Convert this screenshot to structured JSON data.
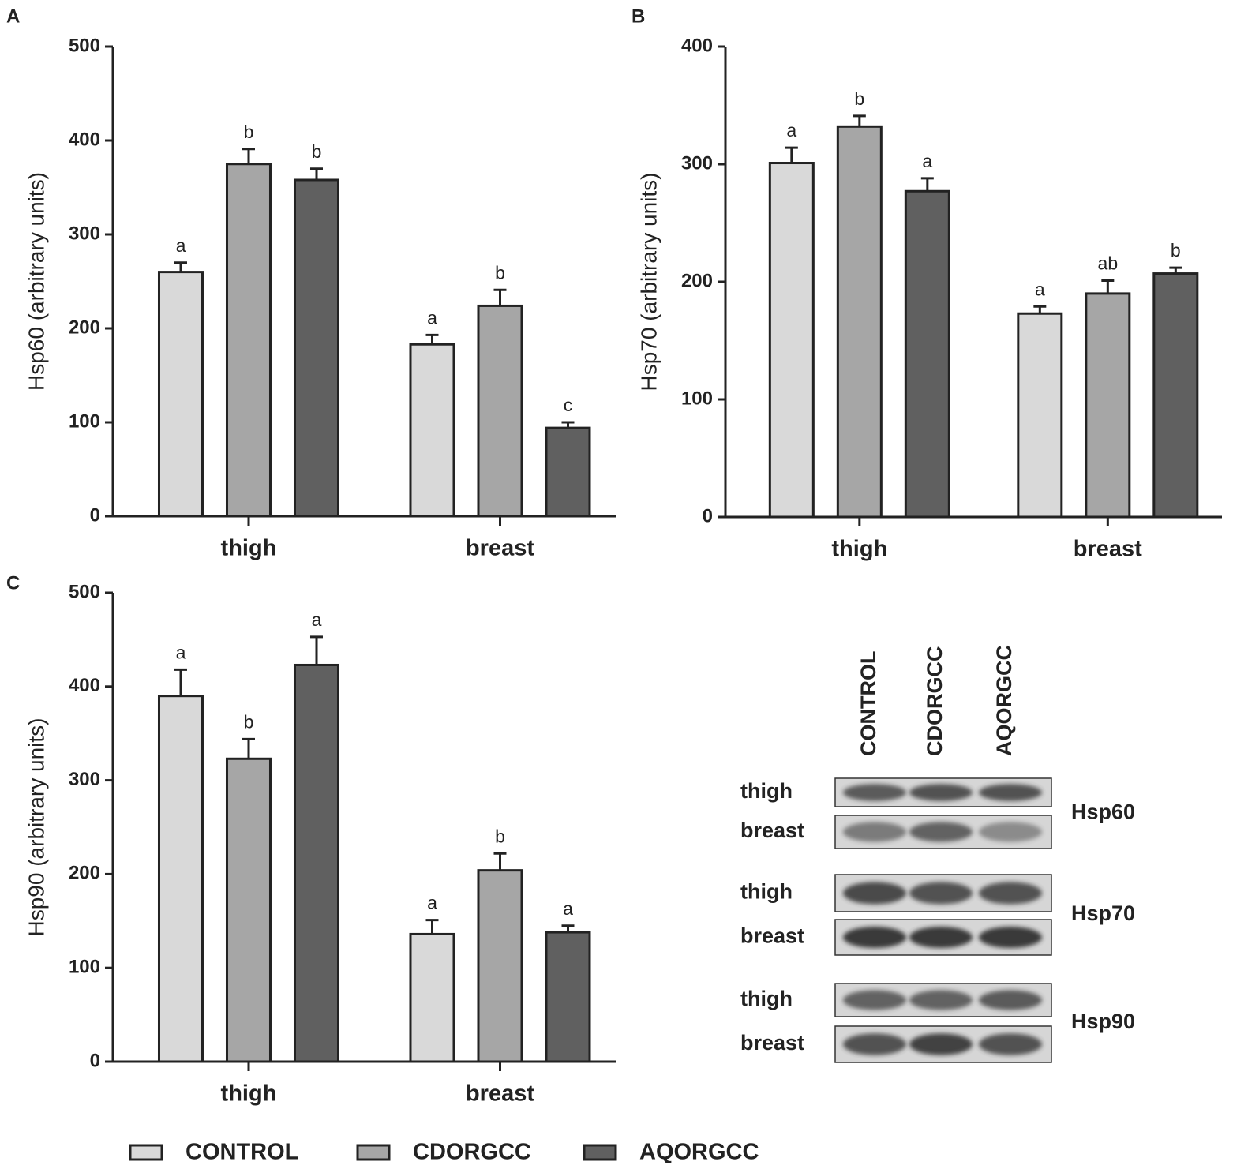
{
  "chart_data": [
    {
      "type": "bar",
      "panel": "A",
      "ylabel": "Hsp60 (arbitrary units)",
      "categories": [
        "thigh",
        "breast"
      ],
      "series": [
        {
          "color": "#d9d9d9",
          "values": [
            260,
            183
          ],
          "errors": [
            10,
            10
          ],
          "annotations": [
            "a",
            "a"
          ]
        },
        {
          "color": "#a6a6a6",
          "values": [
            375,
            224
          ],
          "errors": [
            16,
            17
          ],
          "annotations": [
            "b",
            "b"
          ]
        },
        {
          "color": "#606060",
          "values": [
            358,
            94
          ],
          "errors": [
            12,
            6
          ],
          "annotations": [
            "b",
            "c"
          ]
        }
      ],
      "ylim": [
        0,
        500
      ],
      "yticks": [
        0,
        100,
        200,
        300,
        400,
        500
      ]
    },
    {
      "type": "bar",
      "panel": "B",
      "ylabel": "Hsp70 (arbitrary units)",
      "categories": [
        "thigh",
        "breast"
      ],
      "series": [
        {
          "color": "#d9d9d9",
          "values": [
            301,
            173
          ],
          "errors": [
            13,
            6
          ],
          "annotations": [
            "a",
            "a"
          ]
        },
        {
          "color": "#a6a6a6",
          "values": [
            332,
            190
          ],
          "errors": [
            9,
            11
          ],
          "annotations": [
            "b",
            "ab"
          ]
        },
        {
          "color": "#606060",
          "values": [
            277,
            207
          ],
          "errors": [
            11,
            5
          ],
          "annotations": [
            "a",
            "b"
          ]
        }
      ],
      "ylim": [
        0,
        400
      ],
      "yticks": [
        0,
        100,
        200,
        300,
        400
      ]
    },
    {
      "type": "bar",
      "panel": "C",
      "ylabel": "Hsp90 (arbitrary units)",
      "categories": [
        "thigh",
        "breast"
      ],
      "series": [
        {
          "color": "#d9d9d9",
          "values": [
            390,
            136
          ],
          "errors": [
            28,
            15
          ],
          "annotations": [
            "a",
            "a"
          ]
        },
        {
          "color": "#a6a6a6",
          "values": [
            323,
            204
          ],
          "errors": [
            21,
            18
          ],
          "annotations": [
            "b",
            "b"
          ]
        },
        {
          "color": "#606060",
          "values": [
            423,
            138
          ],
          "errors": [
            30,
            7
          ],
          "annotations": [
            "a",
            "a"
          ]
        }
      ],
      "ylim": [
        0,
        500
      ],
      "yticks": [
        0,
        100,
        200,
        300,
        400,
        500
      ]
    }
  ],
  "legend": [
    "CONTROL",
    "CDORGCC",
    "AQORGCC"
  ],
  "blot": {
    "lanes": [
      "CONTROL",
      "CDORGCC",
      "AQORGCC"
    ],
    "groups": [
      {
        "protein": "Hsp60",
        "rows": [
          "thigh",
          "breast"
        ]
      },
      {
        "protein": "Hsp70",
        "rows": [
          "thigh",
          "breast"
        ]
      },
      {
        "protein": "Hsp90",
        "rows": [
          "thigh",
          "breast"
        ]
      }
    ]
  }
}
